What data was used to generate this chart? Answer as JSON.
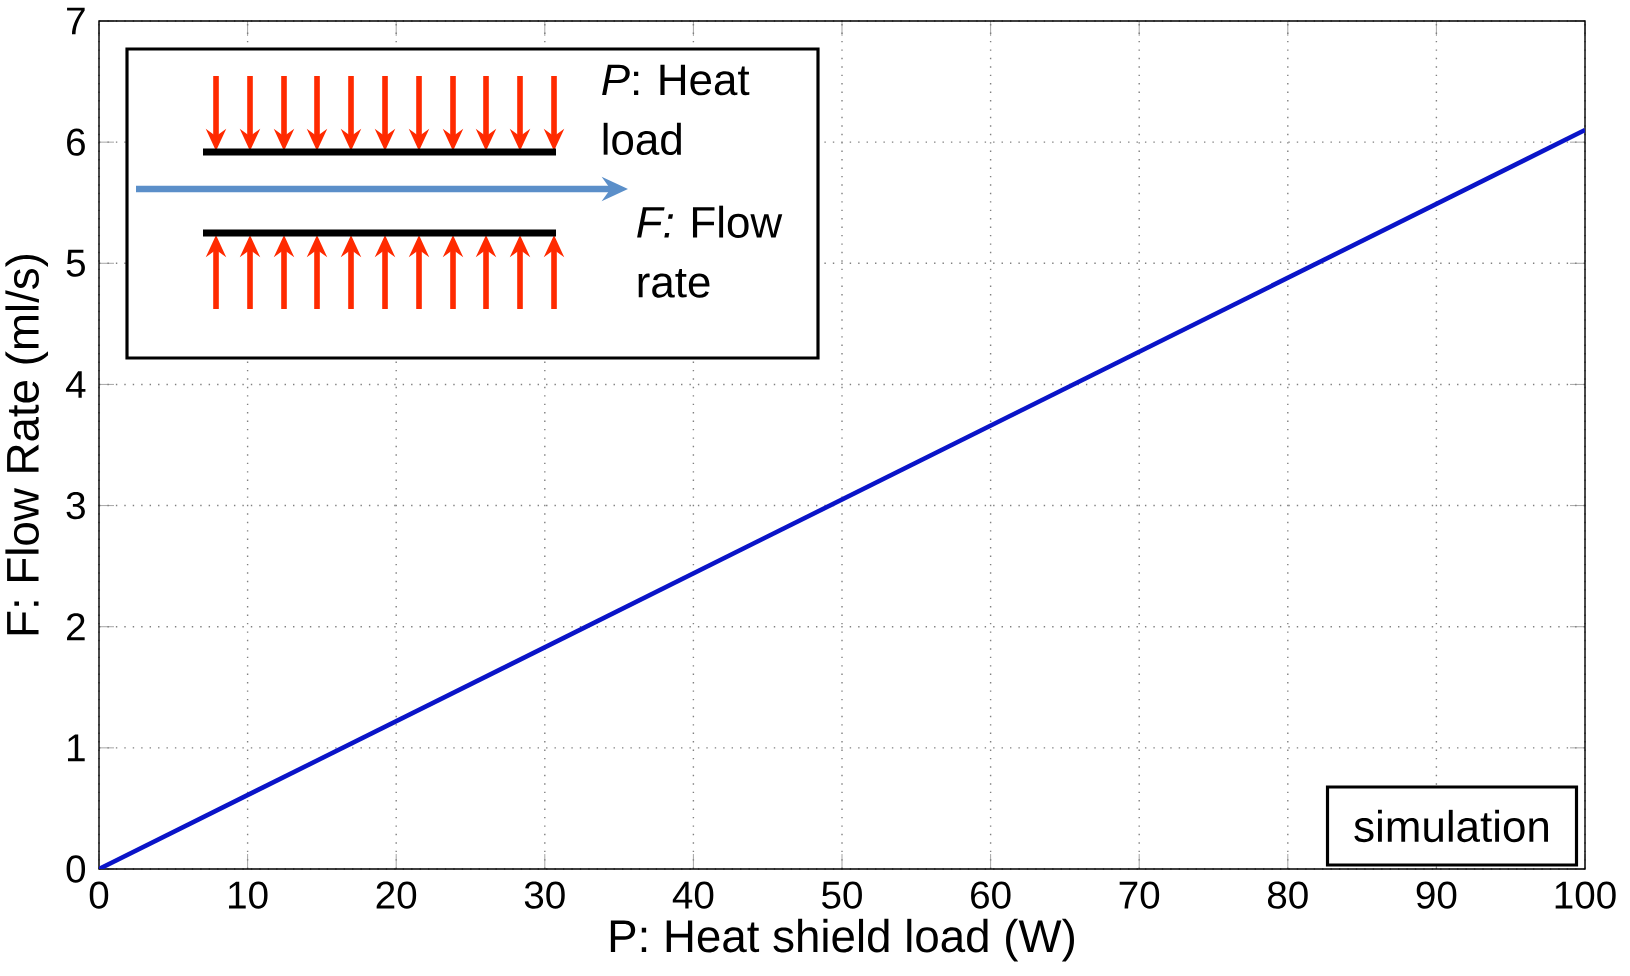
{
  "chart_data": {
    "type": "line",
    "xlabel": "P: Heat shield load (W)",
    "ylabel": "F: Flow Rate (ml/s)",
    "x": [
      0,
      50,
      100
    ],
    "series": [
      {
        "color": "#0a14c8",
        "values": [
          0,
          3.05,
          6.1
        ]
      }
    ],
    "xlim": [
      0,
      100
    ],
    "ylim": [
      0,
      7
    ],
    "xticks": [
      0,
      10,
      20,
      30,
      40,
      50,
      60,
      70,
      80,
      90,
      100
    ],
    "yticks": [
      0,
      1,
      2,
      3,
      4,
      5,
      6,
      7
    ],
    "grid": true,
    "annotations": [
      "*P*: Heat load",
      "*F:* Flow rate",
      "simulation"
    ]
  }
}
